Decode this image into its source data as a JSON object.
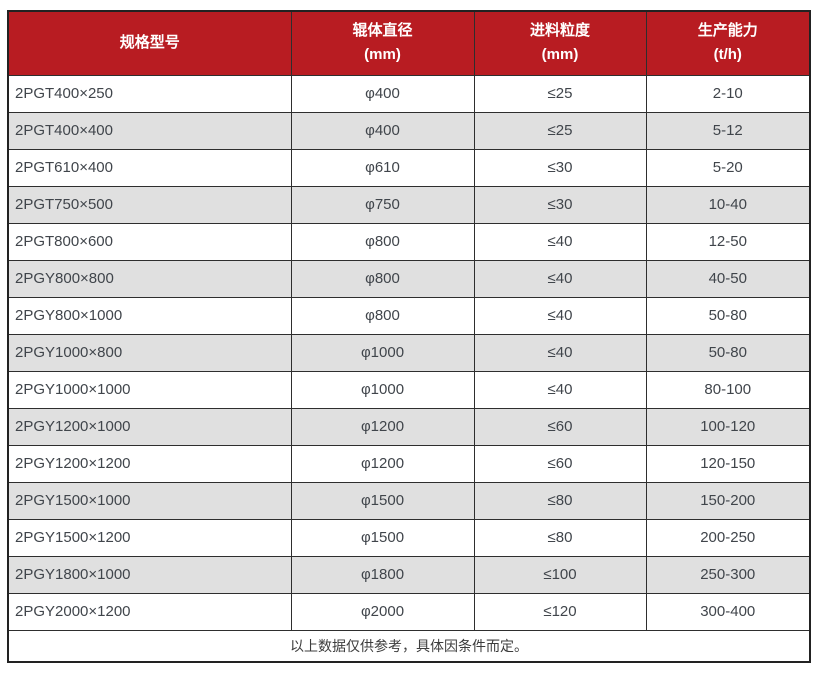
{
  "colors": {
    "header_bg": "#b81c22",
    "header_text": "#ffffff",
    "row_alt_bg": "#e0e0e0",
    "grid_border": "#2e2e2e",
    "body_text": "#40454b"
  },
  "table": {
    "columns": [
      {
        "line1": "规格型号",
        "line2": ""
      },
      {
        "line1": "辊体直径",
        "line2": "(mm)"
      },
      {
        "line1": "进料粒度",
        "line2": "(mm)"
      },
      {
        "line1": "生产能力",
        "line2": "(t/h)"
      }
    ],
    "rows": [
      [
        "2PGT400×250",
        "φ400",
        "≤25",
        "2-10"
      ],
      [
        "2PGT400×400",
        "φ400",
        "≤25",
        "5-12"
      ],
      [
        "2PGT610×400",
        "φ610",
        "≤30",
        "5-20"
      ],
      [
        "2PGT750×500",
        "φ750",
        "≤30",
        "10-40"
      ],
      [
        "2PGT800×600",
        "φ800",
        "≤40",
        "12-50"
      ],
      [
        "2PGY800×800",
        "φ800",
        "≤40",
        "40-50"
      ],
      [
        "2PGY800×1000",
        "φ800",
        "≤40",
        "50-80"
      ],
      [
        "2PGY1000×800",
        "φ1000",
        "≤40",
        "50-80"
      ],
      [
        "2PGY1000×1000",
        "φ1000",
        "≤40",
        "80-100"
      ],
      [
        "2PGY1200×1000",
        "φ1200",
        "≤60",
        "100-120"
      ],
      [
        "2PGY1200×1200",
        "φ1200",
        "≤60",
        "120-150"
      ],
      [
        "2PGY1500×1000",
        "φ1500",
        "≤80",
        "150-200"
      ],
      [
        "2PGY1500×1200",
        "φ1500",
        "≤80",
        "200-250"
      ],
      [
        "2PGY1800×1000",
        "φ1800",
        "≤100",
        "250-300"
      ],
      [
        "2PGY2000×1200",
        "φ2000",
        "≤120",
        "300-400"
      ]
    ],
    "footer_note": "以上数据仅供参考，具体因条件而定。"
  }
}
